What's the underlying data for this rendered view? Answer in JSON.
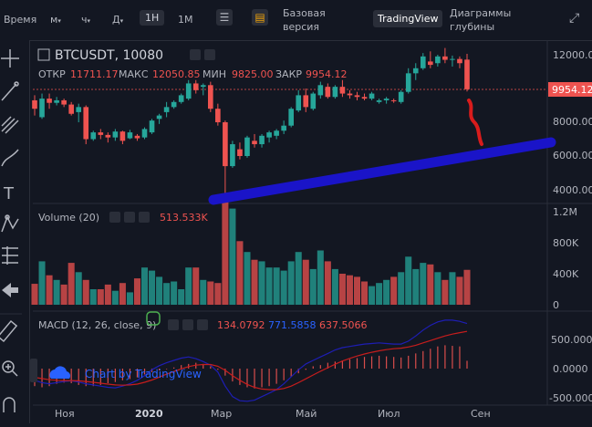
{
  "toolbar": {
    "time_label": "Время",
    "m_label": "м",
    "h_label": "ч",
    "d_label": "Д",
    "interval_1h": "1Н",
    "interval_1m": "1М",
    "basic_version": [
      "Базовая",
      "версия"
    ],
    "tradingview": "TradingView",
    "depth": [
      "Диаграммы",
      "глубины"
    ],
    "settings_icon": "sliders-icon",
    "indicator_icon": "indicator-icon",
    "fullscreen_icon": "fullscreen-icon"
  },
  "legend": {
    "symbol": "BTCUSDT, 10080",
    "open_label": "ОТКР",
    "open_value": "11711.17",
    "high_label": "МАКС",
    "high_value": "12050.85",
    "low_label": "МИН",
    "low_value": "9825.00",
    "close_label": "ЗАКР",
    "close_value": "9954.12"
  },
  "price_axis": {
    "ticks": [
      "12000.00",
      "10000.00",
      "8000.00",
      "6000.00",
      "4000.00"
    ],
    "last_price": "9954.12"
  },
  "volume": {
    "title": "Volume (20)",
    "value": "513.533K",
    "ticks": [
      "1.2M",
      "800K",
      "400K",
      "0"
    ]
  },
  "macd": {
    "title": "MACD (12, 26, close, 9)",
    "v1": "134.0792",
    "v2": "771.5858",
    "v3": "637.5066",
    "ticks": [
      "500.0000",
      "0.0000",
      "-500.0000"
    ]
  },
  "time_axis": {
    "ticks": [
      "Ноя",
      "2020",
      "Мар",
      "Май",
      "Июл",
      "Сен"
    ]
  },
  "watermark": "Chart by TradingView",
  "colors": {
    "up": "#26a69a",
    "down": "#ef5350",
    "bg": "#131722",
    "drawing_blue": "#1a14c8",
    "drawing_red": "#d81c1c"
  },
  "chart_data": {
    "type": "candlestick",
    "x_ticks": [
      "Ноя",
      "2020",
      "Мар",
      "Май",
      "Июл",
      "Сен"
    ],
    "ylim": [
      3500,
      12800
    ],
    "candles": [
      {
        "o": 9300,
        "h": 9600,
        "l": 8400,
        "c": 8800
      },
      {
        "o": 8300,
        "h": 9700,
        "l": 8200,
        "c": 9400
      },
      {
        "o": 9400,
        "h": 9700,
        "l": 8800,
        "c": 9150
      },
      {
        "o": 9150,
        "h": 9500,
        "l": 9000,
        "c": 9300
      },
      {
        "o": 9300,
        "h": 9400,
        "l": 8900,
        "c": 9050
      },
      {
        "o": 9050,
        "h": 9200,
        "l": 8400,
        "c": 8500
      },
      {
        "o": 8600,
        "h": 9100,
        "l": 8000,
        "c": 8900
      },
      {
        "o": 8900,
        "h": 9000,
        "l": 6700,
        "c": 7000
      },
      {
        "o": 7000,
        "h": 7500,
        "l": 6900,
        "c": 7400
      },
      {
        "o": 7400,
        "h": 7600,
        "l": 7000,
        "c": 7250
      },
      {
        "o": 7250,
        "h": 7400,
        "l": 6800,
        "c": 7100
      },
      {
        "o": 7100,
        "h": 7600,
        "l": 6900,
        "c": 7450
      },
      {
        "o": 7450,
        "h": 7500,
        "l": 6700,
        "c": 6900
      },
      {
        "o": 7050,
        "h": 7550,
        "l": 7000,
        "c": 7400
      },
      {
        "o": 7200,
        "h": 7300,
        "l": 6900,
        "c": 7050
      },
      {
        "o": 7100,
        "h": 7700,
        "l": 7000,
        "c": 7600
      },
      {
        "o": 7400,
        "h": 8200,
        "l": 7300,
        "c": 8100
      },
      {
        "o": 8200,
        "h": 8500,
        "l": 7900,
        "c": 8400
      },
      {
        "o": 8600,
        "h": 9200,
        "l": 8300,
        "c": 8900
      },
      {
        "o": 8900,
        "h": 9300,
        "l": 8800,
        "c": 9200
      },
      {
        "o": 9200,
        "h": 9700,
        "l": 9100,
        "c": 9600
      },
      {
        "o": 9400,
        "h": 10500,
        "l": 9300,
        "c": 10300
      },
      {
        "o": 10300,
        "h": 10500,
        "l": 9700,
        "c": 9900
      },
      {
        "o": 10100,
        "h": 10300,
        "l": 9600,
        "c": 10200
      },
      {
        "o": 10200,
        "h": 10400,
        "l": 8600,
        "c": 8800
      },
      {
        "o": 8800,
        "h": 9100,
        "l": 7800,
        "c": 8000
      },
      {
        "o": 8000,
        "h": 8100,
        "l": 3800,
        "c": 5400
      },
      {
        "o": 5400,
        "h": 6900,
        "l": 5300,
        "c": 6700
      },
      {
        "o": 6400,
        "h": 6800,
        "l": 5800,
        "c": 6000
      },
      {
        "o": 6000,
        "h": 7200,
        "l": 5900,
        "c": 7100
      },
      {
        "o": 6900,
        "h": 7300,
        "l": 6500,
        "c": 6700
      },
      {
        "o": 6700,
        "h": 7300,
        "l": 6500,
        "c": 7200
      },
      {
        "o": 7100,
        "h": 7500,
        "l": 6800,
        "c": 7400
      },
      {
        "o": 7200,
        "h": 7600,
        "l": 7000,
        "c": 7500
      },
      {
        "o": 7500,
        "h": 8100,
        "l": 7300,
        "c": 7800
      },
      {
        "o": 7800,
        "h": 8900,
        "l": 7700,
        "c": 8800
      },
      {
        "o": 8700,
        "h": 9900,
        "l": 8600,
        "c": 9600
      },
      {
        "o": 9600,
        "h": 10000,
        "l": 8600,
        "c": 8900
      },
      {
        "o": 8800,
        "h": 9800,
        "l": 8700,
        "c": 9700
      },
      {
        "o": 9600,
        "h": 10400,
        "l": 9400,
        "c": 10200
      },
      {
        "o": 10100,
        "h": 10300,
        "l": 9400,
        "c": 9500
      },
      {
        "o": 9500,
        "h": 10200,
        "l": 9400,
        "c": 10100
      },
      {
        "o": 10100,
        "h": 10500,
        "l": 9500,
        "c": 9700
      },
      {
        "o": 9700,
        "h": 9900,
        "l": 9400,
        "c": 9600
      },
      {
        "o": 9600,
        "h": 9800,
        "l": 9300,
        "c": 9500
      },
      {
        "o": 9500,
        "h": 9700,
        "l": 9300,
        "c": 9400
      },
      {
        "o": 9400,
        "h": 9800,
        "l": 9300,
        "c": 9700
      },
      {
        "o": 9200,
        "h": 9400,
        "l": 9100,
        "c": 9300
      },
      {
        "o": 9300,
        "h": 9500,
        "l": 9100,
        "c": 9400
      },
      {
        "o": 9300,
        "h": 9400,
        "l": 9150,
        "c": 9250
      },
      {
        "o": 9200,
        "h": 9900,
        "l": 9100,
        "c": 9800
      },
      {
        "o": 9800,
        "h": 11200,
        "l": 9700,
        "c": 10900
      },
      {
        "o": 10900,
        "h": 11500,
        "l": 10500,
        "c": 11200
      },
      {
        "o": 11200,
        "h": 12100,
        "l": 11100,
        "c": 11900
      },
      {
        "o": 11600,
        "h": 12200,
        "l": 11200,
        "c": 11400
      },
      {
        "o": 11500,
        "h": 12000,
        "l": 11300,
        "c": 11900
      },
      {
        "o": 11900,
        "h": 12400,
        "l": 11500,
        "c": 11700
      },
      {
        "o": 11700,
        "h": 11950,
        "l": 11300,
        "c": 11750
      },
      {
        "o": 11750,
        "h": 11900,
        "l": 11200,
        "c": 11500
      },
      {
        "o": 11711.17,
        "h": 12050.85,
        "l": 9825.0,
        "c": 9954.12
      }
    ],
    "volume": [
      270,
      560,
      380,
      320,
      260,
      540,
      420,
      320,
      200,
      200,
      260,
      180,
      280,
      160,
      340,
      480,
      440,
      360,
      280,
      300,
      200,
      480,
      480,
      320,
      300,
      280,
      1360,
      1240,
      820,
      680,
      580,
      560,
      480,
      480,
      440,
      560,
      680,
      580,
      460,
      700,
      560,
      460,
      400,
      380,
      360,
      300,
      240,
      280,
      320,
      360,
      420,
      620,
      460,
      540,
      520,
      420,
      320,
      420,
      360,
      450
    ],
    "volume_ylim": [
      0,
      1300
    ],
    "macd_hist": [
      -300,
      -320,
      -300,
      -260,
      -240,
      -250,
      -280,
      -300,
      -300,
      -280,
      -250,
      -230,
      -200,
      -180,
      -150,
      -100,
      -60,
      -30,
      -10,
      20,
      60,
      80,
      100,
      80,
      40,
      -20,
      -120,
      -220,
      -280,
      -320,
      -340,
      -320,
      -300,
      -260,
      -200,
      -140,
      -80,
      -20,
      40,
      60,
      100,
      120,
      140,
      160,
      180,
      200,
      210,
      220,
      210,
      200,
      190,
      220,
      260,
      300,
      340,
      380,
      400,
      390,
      380,
      134
    ],
    "macd_line": [
      -200,
      -240,
      -260,
      -240,
      -220,
      -210,
      -230,
      -260,
      -280,
      -300,
      -320,
      -330,
      -300,
      -260,
      -200,
      -120,
      -20,
      50,
      100,
      140,
      180,
      200,
      170,
      120,
      60,
      -60,
      -300,
      -480,
      -550,
      -560,
      -540,
      -480,
      -420,
      -360,
      -260,
      -140,
      -20,
      80,
      140,
      200,
      260,
      320,
      360,
      380,
      400,
      420,
      430,
      440,
      430,
      420,
      420,
      470,
      560,
      660,
      740,
      800,
      830,
      830,
      810,
      771.59
    ],
    "signal_line": [
      -150,
      -170,
      -190,
      -200,
      -205,
      -205,
      -210,
      -220,
      -235,
      -250,
      -265,
      -280,
      -285,
      -280,
      -265,
      -235,
      -195,
      -145,
      -95,
      -50,
      -5,
      35,
      60,
      70,
      70,
      40,
      -30,
      -120,
      -200,
      -270,
      -320,
      -350,
      -360,
      -360,
      -340,
      -300,
      -240,
      -175,
      -110,
      -45,
      15,
      75,
      130,
      175,
      215,
      250,
      280,
      305,
      325,
      340,
      350,
      370,
      400,
      440,
      480,
      520,
      560,
      590,
      615,
      637.51
    ],
    "macd_ylim": [
      -560,
      900
    ]
  }
}
